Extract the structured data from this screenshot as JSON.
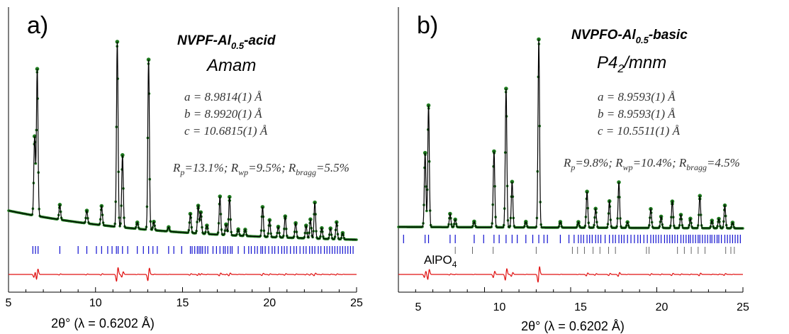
{
  "chart_data": [
    {
      "type": "line",
      "panel_label": "a)",
      "title": "NVPF-Al",
      "title_sub": "0.5",
      "title_suffix": "-acid",
      "space_group": "Amam",
      "params": [
        "a = 8.9814(1) Å",
        "b = 8.9920(1) Å",
        "c = 10.6815(1) Å"
      ],
      "r_factors": [
        {
          "main": "R",
          "sub": "p",
          "val": "=13.1%; "
        },
        {
          "main": "R",
          "sub": "wp",
          "val": "=9.5%; "
        },
        {
          "main": "R",
          "sub": "bragg",
          "val": "=5.5%"
        }
      ],
      "xlabel": "2θ° (λ = 0.6202 Å)",
      "xlim": [
        5,
        25
      ],
      "xticks": [
        "5",
        "10",
        "15",
        "20",
        "25"
      ],
      "series": [
        {
          "role": "observed",
          "color": "#1e7a1e"
        },
        {
          "role": "calculated",
          "color": "#000000"
        },
        {
          "role": "difference",
          "color": "#e01010"
        }
      ],
      "peaks": [
        {
          "x": 6.5,
          "h": 0.37
        },
        {
          "x": 6.65,
          "h": 0.69
        },
        {
          "x": 7.95,
          "h": 0.07
        },
        {
          "x": 9.5,
          "h": 0.06
        },
        {
          "x": 10.35,
          "h": 0.09
        },
        {
          "x": 11.25,
          "h": 0.87
        },
        {
          "x": 11.55,
          "h": 0.34
        },
        {
          "x": 12.4,
          "h": 0.03
        },
        {
          "x": 13.05,
          "h": 0.8
        },
        {
          "x": 13.35,
          "h": 0.04
        },
        {
          "x": 14.2,
          "h": 0.02
        },
        {
          "x": 15.45,
          "h": 0.09
        },
        {
          "x": 15.9,
          "h": 0.13
        },
        {
          "x": 16.05,
          "h": 0.1
        },
        {
          "x": 16.4,
          "h": 0.04
        },
        {
          "x": 17.15,
          "h": 0.18
        },
        {
          "x": 17.5,
          "h": 0.05
        },
        {
          "x": 17.7,
          "h": 0.18
        },
        {
          "x": 18.2,
          "h": 0.03
        },
        {
          "x": 18.6,
          "h": 0.03
        },
        {
          "x": 19.6,
          "h": 0.14
        },
        {
          "x": 20.0,
          "h": 0.08
        },
        {
          "x": 20.5,
          "h": 0.05
        },
        {
          "x": 20.9,
          "h": 0.1
        },
        {
          "x": 21.5,
          "h": 0.07
        },
        {
          "x": 22.1,
          "h": 0.06
        },
        {
          "x": 22.35,
          "h": 0.09
        },
        {
          "x": 22.6,
          "h": 0.17
        },
        {
          "x": 23.0,
          "h": 0.05
        },
        {
          "x": 23.5,
          "h": 0.05
        },
        {
          "x": 23.85,
          "h": 0.08
        },
        {
          "x": 24.2,
          "h": 0.03
        }
      ],
      "reflections": [
        [
          6.4,
          6.55,
          6.7,
          7.95,
          9.0,
          9.5,
          10.05,
          10.35,
          10.7,
          10.95,
          11.2,
          11.3,
          11.55,
          11.85,
          12.4,
          12.75,
          13.05,
          13.3,
          13.55,
          14.2,
          14.5,
          14.95,
          15.45,
          15.55,
          15.7,
          15.85,
          15.95,
          16.05,
          16.15,
          16.3,
          16.45,
          16.75,
          16.95,
          17.15,
          17.35,
          17.45,
          17.6,
          17.75,
          17.85,
          18.2,
          18.55,
          18.8,
          18.95,
          19.15,
          19.3,
          19.5,
          19.6,
          19.75,
          19.95,
          20.15,
          20.3,
          20.5,
          20.7,
          20.85,
          21.0,
          21.2,
          21.4,
          21.55,
          21.75,
          21.95,
          22.1,
          22.3,
          22.45,
          22.6,
          22.8,
          22.95,
          23.15,
          23.3,
          23.45,
          23.6,
          23.75,
          23.9,
          24.05,
          24.2,
          24.35,
          24.5,
          24.65,
          24.8
        ]
      ],
      "background": "sloping"
    },
    {
      "type": "line",
      "panel_label": "b)",
      "title": "NVPFO-Al",
      "title_sub": "0.5",
      "title_suffix": "-basic",
      "space_group": "P4",
      "space_group_sub": "2",
      "space_group_suffix": "/mnm",
      "params": [
        "a = 8.9593(1) Å",
        "b = 8.9593(1) Å",
        "c = 10.5511(1) Å"
      ],
      "r_factors": [
        {
          "main": "R",
          "sub": "p",
          "val": "=9.8%; "
        },
        {
          "main": "R",
          "sub": "wp",
          "val": "=10.4%; "
        },
        {
          "main": "R",
          "sub": "bragg",
          "val": "=4.5%"
        }
      ],
      "impurity_phase": {
        "main": "AlPO",
        "sub": "4"
      },
      "xlabel": "2θ° (λ = 0.6202 Å)",
      "xlim": [
        5,
        25
      ],
      "xticks": [
        "5",
        "10",
        "15",
        "20",
        "25"
      ],
      "series": [
        {
          "role": "observed",
          "color": "#1e7a1e"
        },
        {
          "role": "calculated",
          "color": "#000000"
        },
        {
          "role": "difference",
          "color": "#e01010"
        }
      ],
      "peaks": [
        {
          "x": 6.55,
          "h": 0.39
        },
        {
          "x": 6.75,
          "h": 0.64
        },
        {
          "x": 8.0,
          "h": 0.07
        },
        {
          "x": 8.3,
          "h": 0.04
        },
        {
          "x": 9.4,
          "h": 0.03
        },
        {
          "x": 10.55,
          "h": 0.4
        },
        {
          "x": 11.25,
          "h": 0.73
        },
        {
          "x": 11.6,
          "h": 0.24
        },
        {
          "x": 12.4,
          "h": 0.03
        },
        {
          "x": 13.15,
          "h": 0.99
        },
        {
          "x": 14.4,
          "h": 0.03
        },
        {
          "x": 15.45,
          "h": 0.03
        },
        {
          "x": 15.95,
          "h": 0.19
        },
        {
          "x": 16.45,
          "h": 0.1
        },
        {
          "x": 17.25,
          "h": 0.14
        },
        {
          "x": 17.8,
          "h": 0.24
        },
        {
          "x": 18.3,
          "h": 0.03
        },
        {
          "x": 19.65,
          "h": 0.1
        },
        {
          "x": 20.25,
          "h": 0.06
        },
        {
          "x": 20.9,
          "h": 0.14
        },
        {
          "x": 21.4,
          "h": 0.07
        },
        {
          "x": 21.95,
          "h": 0.05
        },
        {
          "x": 22.5,
          "h": 0.17
        },
        {
          "x": 23.2,
          "h": 0.04
        },
        {
          "x": 23.6,
          "h": 0.05
        },
        {
          "x": 23.95,
          "h": 0.12
        },
        {
          "x": 24.4,
          "h": 0.03
        }
      ],
      "reflections": [
        [
          5.3,
          6.55,
          6.75,
          8.0,
          8.3,
          9.4,
          9.95,
          10.55,
          10.85,
          11.25,
          11.6,
          11.9,
          12.4,
          12.8,
          13.15,
          13.45,
          13.65,
          14.4,
          14.9,
          15.2,
          15.45,
          15.6,
          15.75,
          15.95,
          16.1,
          16.25,
          16.45,
          16.6,
          16.75,
          17.0,
          17.25,
          17.45,
          17.6,
          17.8,
          17.95,
          18.1,
          18.3,
          18.5,
          18.7,
          18.9,
          19.05,
          19.25,
          19.45,
          19.65,
          19.8,
          19.95,
          20.1,
          20.25,
          20.45,
          20.6,
          20.75,
          20.9,
          21.05,
          21.2,
          21.4,
          21.55,
          21.7,
          21.85,
          21.95,
          22.1,
          22.25,
          22.4,
          22.5,
          22.65,
          22.8,
          22.95,
          23.1,
          23.2,
          23.35,
          23.5,
          23.6,
          23.75,
          23.95,
          24.1,
          24.25,
          24.4,
          24.55,
          24.7,
          24.85
        ],
        [
          8.3,
          9.3,
          10.5,
          13.0,
          15.1,
          15.4,
          15.8,
          16.3,
          16.7,
          17.2,
          17.6,
          19.4,
          19.55,
          21.2,
          21.6,
          22.0,
          22.4,
          22.8,
          24.0,
          24.3,
          24.5
        ]
      ],
      "background": "flat"
    }
  ]
}
